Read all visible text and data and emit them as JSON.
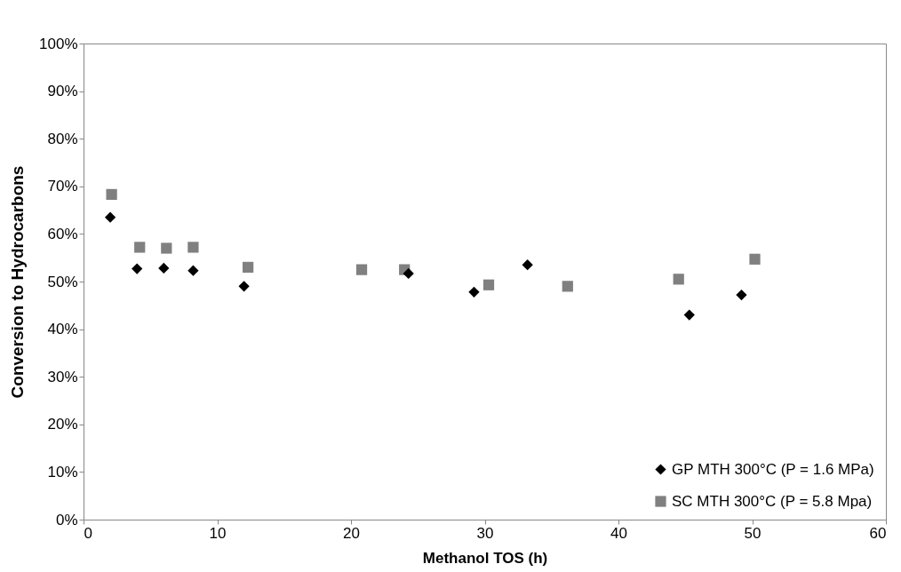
{
  "chart_data": {
    "type": "scatter",
    "xlabel": "Methanol TOS (h)",
    "ylabel": "Conversion to Hydrocarbons",
    "xlim": [
      0,
      60
    ],
    "xticks": [
      0,
      10,
      20,
      30,
      40,
      50,
      60
    ],
    "ylim": [
      0,
      100
    ],
    "yticks": [
      {
        "value": 0,
        "label": "0%"
      },
      {
        "value": 10,
        "label": "10%"
      },
      {
        "value": 20,
        "label": "20%"
      },
      {
        "value": 30,
        "label": "30%"
      },
      {
        "value": 40,
        "label": "40%"
      },
      {
        "value": 50,
        "label": "50%"
      },
      {
        "value": 60,
        "label": "60%"
      },
      {
        "value": 70,
        "label": "70%"
      },
      {
        "value": 80,
        "label": "80%"
      },
      {
        "value": 90,
        "label": "90%"
      },
      {
        "value": 100,
        "label": "100%"
      }
    ],
    "grid": false,
    "legend": "bottom right",
    "series": [
      {
        "name": "GP MTH 300°C (P = 1.6 MPa)",
        "color": "#000000",
        "marker": "diamond",
        "x": [
          2,
          4,
          6,
          8.2,
          12,
          24.3,
          29.2,
          33.2,
          45.3,
          49.2
        ],
        "values": [
          63.5,
          52.7,
          52.8,
          52.3,
          49,
          51.7,
          47.8,
          53.5,
          43,
          47.2
        ]
      },
      {
        "name": "SC MTH 300°C (P = 5.8 Mpa)",
        "color": "#808080",
        "marker": "square",
        "x": [
          2.1,
          4.2,
          6.2,
          8.2,
          12.3,
          20.8,
          24,
          30.3,
          36.2,
          44.5,
          50.2
        ],
        "values": [
          68.3,
          57.2,
          57,
          57.2,
          53,
          52.5,
          52.5,
          49.3,
          49,
          50.5,
          54.7
        ]
      }
    ]
  }
}
